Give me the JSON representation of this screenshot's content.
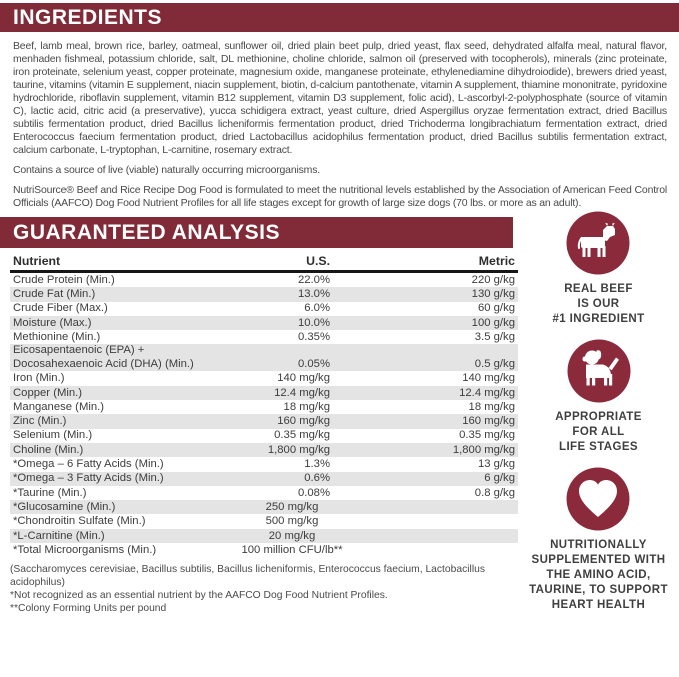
{
  "colors": {
    "maroon": "#822B38",
    "badge_maroon": "#8B2A3A",
    "row_shade": "#E4E4E4",
    "body_text": "#4A4A4A"
  },
  "ingredients": {
    "title": "INGREDIENTS",
    "paragraph": "Beef, lamb meal, brown rice, barley, oatmeal, sunflower oil, dried plain beet pulp, dried yeast, flax seed, dehydrated alfalfa meal, natural flavor, menhaden fishmeal, potassium chloride, salt, DL methionine, choline chloride, salmon oil (preserved with tocopherols), minerals (zinc proteinate, iron proteinate, selenium yeast, copper proteinate, magnesium oxide, manganese proteinate, ethylenediamine dihydroiodide), brewers dried yeast, taurine, vitamins (vitamin E supplement, niacin supplement, biotin, d-calcium pantothenate, vitamin A supplement, thiamine mononitrate, pyridoxine hydrochloride, riboflavin supplement, vitamin B12 supplement, vitamin D3 supplement, folic acid), L-ascorbyl-2-polyphosphate (source of vitamin C), lactic acid, citric acid (a preservative), yucca schidigera extract, yeast culture, dried Aspergillus oryzae fermentation extract, dried Bacillus subtilis fermentation product, dried Bacillus licheniformis fermentation product, dried Trichoderma longibrachiatum fermentation extract, dried Enterococcus faecium fermentation product, dried Lactobacillus acidophilus fermentation product, dried Bacillus subtilis fermentation extract, calcium carbonate, L-tryptophan, L-carnitine, rosemary extract.",
    "note": "Contains a source of live (viable) naturally occurring microorganisms.",
    "aafco": "NutriSource® Beef and Rice Recipe Dog Food is formulated to meet the nutritional levels established by the Association of American Feed Control Officials (AAFCO) Dog Food Nutrient Profiles for all life stages except for growth of large size dogs (70 lbs. or more as an adult)."
  },
  "analysis": {
    "title": "GUARANTEED ANALYSIS",
    "columns": [
      "Nutrient",
      "U.S.",
      "Metric"
    ],
    "rows": [
      {
        "nutrient": [
          "Crude Protein (Min.)"
        ],
        "us": "22.0%",
        "metric": "220 g/kg",
        "shaded": false
      },
      {
        "nutrient": [
          "Crude Fat (Min.)"
        ],
        "us": "13.0%",
        "metric": "130 g/kg",
        "shaded": true
      },
      {
        "nutrient": [
          "Crude Fiber (Max.)"
        ],
        "us": "6.0%",
        "metric": "60 g/kg",
        "shaded": false
      },
      {
        "nutrient": [
          "Moisture (Max.)"
        ],
        "us": "10.0%",
        "metric": "100 g/kg",
        "shaded": true
      },
      {
        "nutrient": [
          "Methionine (Min.)"
        ],
        "us": "0.35%",
        "metric": "3.5 g/kg",
        "shaded": false
      },
      {
        "nutrient": [
          "Eicosapentaenoic (EPA) +",
          "Docosahexaenoic Acid (DHA) (Min.)"
        ],
        "us": "0.05%",
        "metric": "0.5 g/kg",
        "shaded": true
      },
      {
        "nutrient": [
          "Iron (Min.)"
        ],
        "us": "140 mg/kg",
        "metric": "140 mg/kg",
        "shaded": false
      },
      {
        "nutrient": [
          "Copper (Min.)"
        ],
        "us": "12.4 mg/kg",
        "metric": "12.4 mg/kg",
        "shaded": true
      },
      {
        "nutrient": [
          "Manganese (Min.)"
        ],
        "us": "18 mg/kg",
        "metric": "18 mg/kg",
        "shaded": false
      },
      {
        "nutrient": [
          "Zinc (Min.)"
        ],
        "us": "160 mg/kg",
        "metric": "160 mg/kg",
        "shaded": true
      },
      {
        "nutrient": [
          "Selenium (Min.)"
        ],
        "us": "0.35 mg/kg",
        "metric": "0.35 mg/kg",
        "shaded": false
      },
      {
        "nutrient": [
          "Choline (Min.)"
        ],
        "us": "1,800 mg/kg",
        "metric": "1,800 mg/kg",
        "shaded": true
      },
      {
        "nutrient": [
          "*Omega – 6 Fatty Acids (Min.)"
        ],
        "us": "1.3%",
        "metric": "13 g/kg",
        "shaded": false
      },
      {
        "nutrient": [
          "*Omega – 3 Fatty Acids (Min.)"
        ],
        "us": "0.6%",
        "metric": "6 g/kg",
        "shaded": true
      },
      {
        "nutrient": [
          "*Taurine (Min.)"
        ],
        "us": "0.08%",
        "metric": "0.8 g/kg",
        "shaded": false
      },
      {
        "nutrient": [
          "*Glucosamine (Min.)"
        ],
        "span": true,
        "value": "250 mg/kg",
        "shaded": true
      },
      {
        "nutrient": [
          "*Chondroitin Sulfate (Min.)"
        ],
        "span": true,
        "value": "500 mg/kg",
        "shaded": false
      },
      {
        "nutrient": [
          "*L-Carnitine (Min.)"
        ],
        "span": true,
        "value": "20 mg/kg",
        "shaded": true
      },
      {
        "nutrient": [
          "*Total Microorganisms (Min.)"
        ],
        "span": true,
        "value": "100 million CFU/lb**",
        "shaded": false
      }
    ],
    "footnotes": [
      "(Saccharomyces cerevisiae, Bacillus subtilis, Bacillus licheniformis, Enterococcus faecium, Lactobacillus acidophilus)",
      "*Not recognized as an essential nutrient by the AAFCO Dog Food Nutrient Profiles.",
      "**Colony Forming Units per pound"
    ]
  },
  "badges": [
    {
      "icon": "cow-icon",
      "caption": [
        "REAL BEEF",
        "IS OUR",
        "#1 INGREDIENT"
      ]
    },
    {
      "icon": "dog-icon",
      "caption": [
        "APPROPRIATE",
        "FOR ALL",
        "LIFE STAGES"
      ]
    },
    {
      "icon": "heart-icon",
      "caption": [
        "NUTRITIONALLY",
        "SUPPLEMENTED WITH",
        "THE AMINO ACID,",
        "TAURINE, TO SUPPORT",
        "HEART HEALTH"
      ]
    }
  ]
}
